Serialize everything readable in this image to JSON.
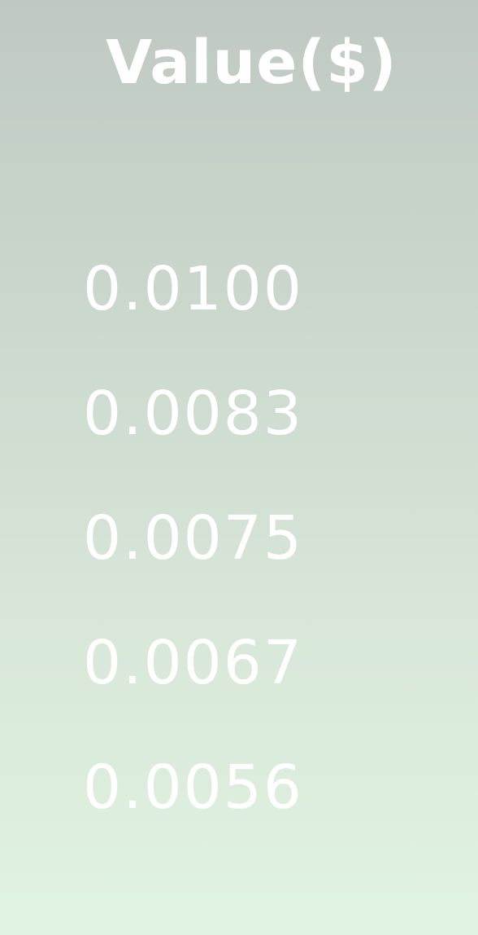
{
  "header": {
    "title": "Value($)"
  },
  "values": [
    "0.0100",
    "0.0083",
    "0.0075",
    "0.0067",
    "0.0056"
  ],
  "colors": {
    "text": "#ffffff",
    "background_top": "#bfc9c2",
    "background_bottom": "#e1f3e1"
  }
}
